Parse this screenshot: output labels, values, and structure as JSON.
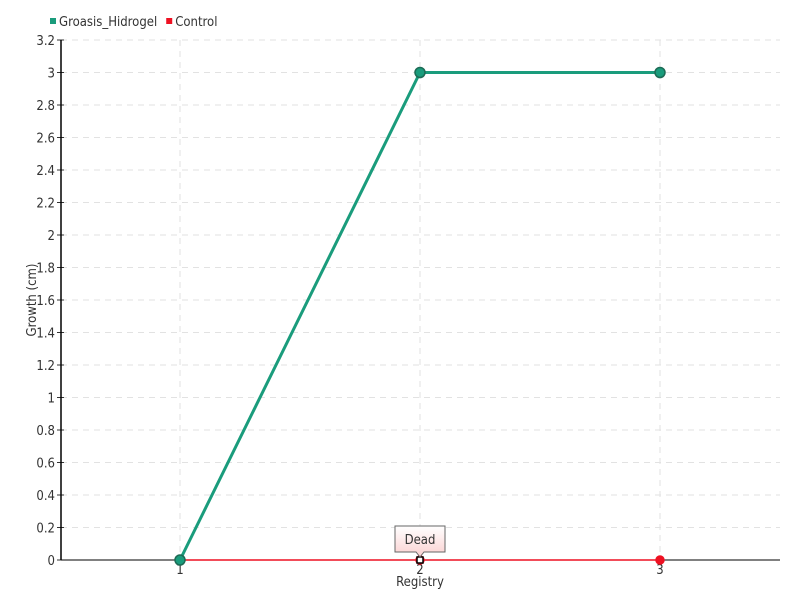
{
  "chart_data": {
    "type": "line",
    "title": "",
    "xlabel": "Registry",
    "ylabel": "Growth (cm)",
    "categories": [
      "1",
      "2",
      "3"
    ],
    "ylim": [
      0,
      3.2
    ],
    "yticks": [
      "0",
      "0.2",
      "0.4",
      "0.6",
      "0.8",
      "1",
      "1.2",
      "1.4",
      "1.6",
      "1.8",
      "2",
      "2.2",
      "2.4",
      "2.6",
      "2.8",
      "3",
      "3.2"
    ],
    "grid": true,
    "legend_position": "top-left",
    "series": [
      {
        "name": "Groasis_Hidrogel",
        "color": "#1a9c7c",
        "values": [
          0,
          3,
          3
        ]
      },
      {
        "name": "Control",
        "color": "#ee1122",
        "values": [
          0,
          0,
          0
        ]
      }
    ],
    "annotations": [
      {
        "series": "Control",
        "category": "2",
        "text": "Dead"
      }
    ]
  }
}
